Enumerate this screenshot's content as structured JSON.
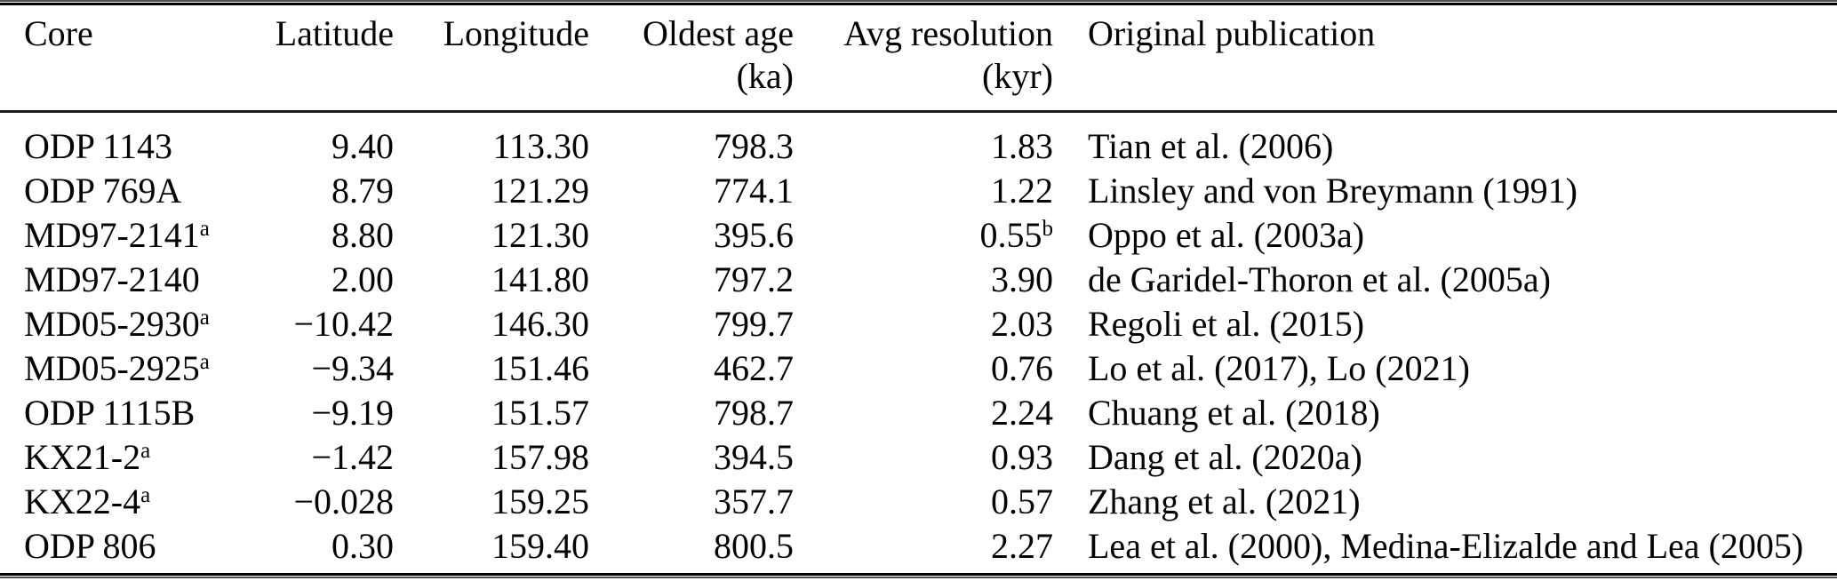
{
  "table": {
    "title_semantic": "Sediment core metadata table",
    "columns": [
      {
        "label": "Core",
        "unit": ""
      },
      {
        "label": "Latitude",
        "unit": ""
      },
      {
        "label": "Longitude",
        "unit": ""
      },
      {
        "label": "Oldest age",
        "unit": "(ka)"
      },
      {
        "label": "Avg resolution",
        "unit": "(kyr)"
      },
      {
        "label": "Original publication",
        "unit": ""
      }
    ],
    "rows": [
      {
        "core": "ODP 1143",
        "core_sup": "",
        "lat": "9.40",
        "lon": "113.30",
        "age": "798.3",
        "res": "1.83",
        "res_sup": "",
        "pub": "Tian et al. (2006)"
      },
      {
        "core": "ODP 769A",
        "core_sup": "",
        "lat": "8.79",
        "lon": "121.29",
        "age": "774.1",
        "res": "1.22",
        "res_sup": "",
        "pub": "Linsley and von Breymann (1991)"
      },
      {
        "core": "MD97-2141",
        "core_sup": "a",
        "lat": "8.80",
        "lon": "121.30",
        "age": "395.6",
        "res": "0.55",
        "res_sup": "b",
        "pub": "Oppo et al. (2003a)"
      },
      {
        "core": "MD97-2140",
        "core_sup": "",
        "lat": "2.00",
        "lon": "141.80",
        "age": "797.2",
        "res": "3.90",
        "res_sup": "",
        "pub": "de Garidel-Thoron et al. (2005a)"
      },
      {
        "core": "MD05-2930",
        "core_sup": "a",
        "lat": "−10.42",
        "lon": "146.30",
        "age": "799.7",
        "res": "2.03",
        "res_sup": "",
        "pub": "Regoli et al. (2015)"
      },
      {
        "core": "MD05-2925",
        "core_sup": "a",
        "lat": "−9.34",
        "lon": "151.46",
        "age": "462.7",
        "res": "0.76",
        "res_sup": "",
        "pub": "Lo et al. (2017), Lo (2021)"
      },
      {
        "core": "ODP 1115B",
        "core_sup": "",
        "lat": "−9.19",
        "lon": "151.57",
        "age": "798.7",
        "res": "2.24",
        "res_sup": "",
        "pub": "Chuang et al. (2018)"
      },
      {
        "core": "KX21-2",
        "core_sup": "a",
        "lat": "−1.42",
        "lon": "157.98",
        "age": "394.5",
        "res": "0.93",
        "res_sup": "",
        "pub": "Dang et al. (2020a)"
      },
      {
        "core": "KX22-4",
        "core_sup": "a",
        "lat": "−0.028",
        "lon": "159.25",
        "age": "357.7",
        "res": "0.57",
        "res_sup": "",
        "pub": "Zhang et al. (2021)"
      },
      {
        "core": "ODP 806",
        "core_sup": "",
        "lat": "0.30",
        "lon": "159.40",
        "age": "800.5",
        "res": "2.27",
        "res_sup": "",
        "pub": "Lea et al. (2000), Medina-Elizalde and Lea (2005)"
      }
    ]
  }
}
